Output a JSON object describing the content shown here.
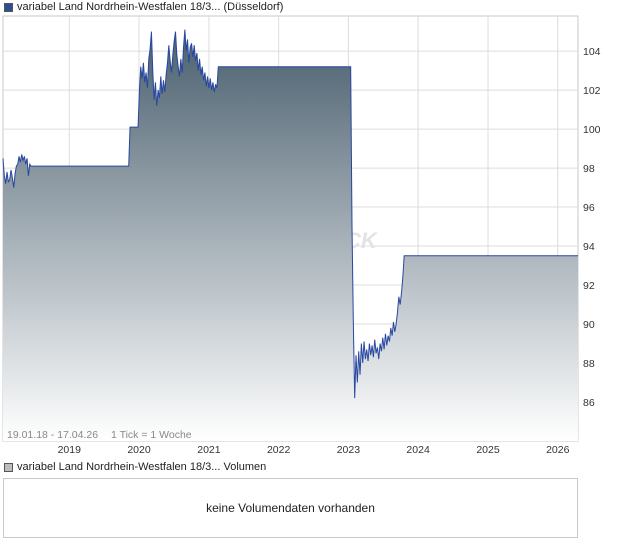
{
  "legend": {
    "price_label": "variabel Land Nordrhein-Westfalen 18/3... (Düsseldorf)",
    "price_swatch_color": "#2d4f8f",
    "volume_label": "variabel Land Nordrhein-Westfalen 18/3... Volumen",
    "volume_swatch_color": "#bdbdbd"
  },
  "chart_info": {
    "range_text": "19.01.18 - 17.04.26",
    "tick_text": "1 Tick = 1 Woche"
  },
  "watermark": "CK",
  "volume_panel": {
    "message": "keine Volumendaten vorhanden"
  },
  "colors": {
    "line": "#2747a0",
    "fill_top": "#4a5f6e",
    "fill_bottom": "#ffffff",
    "grid": "#dcdcdc"
  },
  "chart_data": {
    "type": "area",
    "title": "",
    "xlabel": "",
    "ylabel": "",
    "x_ticks": [
      "2019",
      "2020",
      "2021",
      "2022",
      "2023",
      "2024",
      "2025",
      "2026"
    ],
    "y_ticks": [
      86,
      88,
      90,
      92,
      94,
      96,
      98,
      100,
      102,
      104
    ],
    "ylim": [
      84.0,
      105.8
    ],
    "xlim": [
      "2018-01-19",
      "2026-04-17"
    ],
    "y_axis_position": "right",
    "grid": true,
    "series": [
      {
        "name": "variabel Land Nordrhein-Westfalen 18/3... (Düsseldorf)",
        "points": [
          [
            "2018-01-19",
            98.5
          ],
          [
            "2018-01-26",
            97.6
          ],
          [
            "2018-02-02",
            97.2
          ],
          [
            "2018-02-09",
            97.8
          ],
          [
            "2018-02-16",
            97.3
          ],
          [
            "2018-02-23",
            97.4
          ],
          [
            "2018-03-02",
            97.9
          ],
          [
            "2018-03-09",
            97.5
          ],
          [
            "2018-03-16",
            97.0
          ],
          [
            "2018-03-23",
            97.7
          ],
          [
            "2018-03-30",
            98.1
          ],
          [
            "2018-04-06",
            98.2
          ],
          [
            "2018-04-13",
            98.6
          ],
          [
            "2018-04-20",
            98.3
          ],
          [
            "2018-04-27",
            98.7
          ],
          [
            "2018-05-04",
            98.4
          ],
          [
            "2018-05-11",
            98.6
          ],
          [
            "2018-05-18",
            98.2
          ],
          [
            "2018-05-25",
            98.5
          ],
          [
            "2018-06-01",
            97.6
          ],
          [
            "2018-06-08",
            98.2
          ],
          [
            "2018-06-15",
            98.1
          ],
          [
            "2018-12-31",
            98.1
          ],
          [
            "2019-11-08",
            98.1
          ],
          [
            "2019-11-15",
            100.1
          ],
          [
            "2019-12-27",
            100.1
          ],
          [
            "2020-01-03",
            102.0
          ],
          [
            "2020-01-10",
            103.2
          ],
          [
            "2020-01-17",
            102.6
          ],
          [
            "2020-01-24",
            103.4
          ],
          [
            "2020-01-31",
            102.4
          ],
          [
            "2020-02-07",
            102.9
          ],
          [
            "2020-02-14",
            102.1
          ],
          [
            "2020-02-21",
            103.6
          ],
          [
            "2020-02-28",
            104.1
          ],
          [
            "2020-03-06",
            105.0
          ],
          [
            "2020-03-13",
            103.0
          ],
          [
            "2020-03-20",
            101.5
          ],
          [
            "2020-03-27",
            102.4
          ],
          [
            "2020-04-03",
            101.2
          ],
          [
            "2020-04-10",
            102.0
          ],
          [
            "2020-04-17",
            101.6
          ],
          [
            "2020-04-24",
            102.7
          ],
          [
            "2020-05-01",
            101.8
          ],
          [
            "2020-05-08",
            102.5
          ],
          [
            "2020-05-15",
            101.9
          ],
          [
            "2020-05-22",
            102.8
          ],
          [
            "2020-05-29",
            103.4
          ],
          [
            "2020-06-05",
            104.3
          ],
          [
            "2020-06-12",
            103.5
          ],
          [
            "2020-06-19",
            102.9
          ],
          [
            "2020-06-26",
            103.8
          ],
          [
            "2020-07-03",
            104.5
          ],
          [
            "2020-07-10",
            105.0
          ],
          [
            "2020-07-17",
            103.8
          ],
          [
            "2020-07-24",
            103.2
          ],
          [
            "2020-07-31",
            102.7
          ],
          [
            "2020-08-07",
            103.6
          ],
          [
            "2020-08-14",
            102.9
          ],
          [
            "2020-08-21",
            104.2
          ],
          [
            "2020-08-28",
            105.1
          ],
          [
            "2020-09-04",
            104.0
          ],
          [
            "2020-09-11",
            104.6
          ],
          [
            "2020-09-18",
            103.4
          ],
          [
            "2020-09-25",
            104.2
          ],
          [
            "2020-10-02",
            104.4
          ],
          [
            "2020-10-09",
            103.7
          ],
          [
            "2020-10-16",
            104.3
          ],
          [
            "2020-10-23",
            103.5
          ],
          [
            "2020-10-30",
            103.9
          ],
          [
            "2020-11-06",
            103.0
          ],
          [
            "2020-11-13",
            103.6
          ],
          [
            "2020-11-20",
            102.8
          ],
          [
            "2020-11-27",
            103.2
          ],
          [
            "2020-12-04",
            102.5
          ],
          [
            "2020-12-11",
            102.9
          ],
          [
            "2020-12-18",
            102.2
          ],
          [
            "2020-12-25",
            102.7
          ],
          [
            "2021-01-01",
            102.1
          ],
          [
            "2021-01-08",
            102.6
          ],
          [
            "2021-01-15",
            102.0
          ],
          [
            "2021-01-22",
            102.4
          ],
          [
            "2021-01-29",
            101.9
          ],
          [
            "2021-02-05",
            102.3
          ],
          [
            "2021-02-12",
            102.1
          ],
          [
            "2021-02-19",
            103.2
          ],
          [
            "2022-12-30",
            103.2
          ],
          [
            "2023-01-13",
            103.2
          ],
          [
            "2023-01-20",
            95.0
          ],
          [
            "2023-01-27",
            90.0
          ],
          [
            "2023-02-03",
            86.2
          ],
          [
            "2023-02-10",
            88.4
          ],
          [
            "2023-02-17",
            87.0
          ],
          [
            "2023-02-24",
            88.6
          ],
          [
            "2023-03-03",
            87.4
          ],
          [
            "2023-03-10",
            89.0
          ],
          [
            "2023-03-17",
            88.0
          ],
          [
            "2023-03-24",
            89.1
          ],
          [
            "2023-03-31",
            88.2
          ],
          [
            "2023-04-07",
            88.7
          ],
          [
            "2023-04-14",
            88.1
          ],
          [
            "2023-04-21",
            89.0
          ],
          [
            "2023-04-28",
            88.4
          ],
          [
            "2023-05-05",
            88.9
          ],
          [
            "2023-05-12",
            88.3
          ],
          [
            "2023-05-19",
            89.2
          ],
          [
            "2023-05-26",
            88.5
          ],
          [
            "2023-06-02",
            88.8
          ],
          [
            "2023-06-09",
            88.2
          ],
          [
            "2023-06-16",
            89.0
          ],
          [
            "2023-06-23",
            88.6
          ],
          [
            "2023-06-30",
            89.3
          ],
          [
            "2023-07-07",
            88.7
          ],
          [
            "2023-07-14",
            89.5
          ],
          [
            "2023-07-21",
            88.9
          ],
          [
            "2023-07-28",
            89.4
          ],
          [
            "2023-08-04",
            89.1
          ],
          [
            "2023-08-11",
            89.8
          ],
          [
            "2023-08-18",
            89.4
          ],
          [
            "2023-08-25",
            90.1
          ],
          [
            "2023-09-01",
            89.6
          ],
          [
            "2023-09-08",
            90.0
          ],
          [
            "2023-09-15",
            90.6
          ],
          [
            "2023-09-22",
            91.4
          ],
          [
            "2023-09-29",
            91.0
          ],
          [
            "2023-10-06",
            91.6
          ],
          [
            "2023-10-13",
            92.4
          ],
          [
            "2023-10-20",
            93.5
          ],
          [
            "2026-04-17",
            93.5
          ]
        ]
      }
    ],
    "volume": null
  }
}
